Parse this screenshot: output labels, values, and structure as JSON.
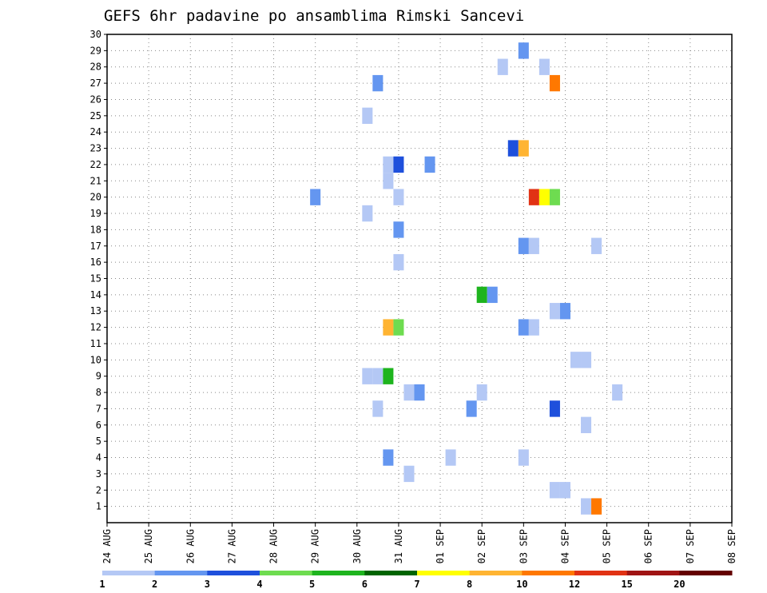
{
  "chart_data": {
    "type": "heatmap",
    "title": "GEFS 6hr padavine po ansamblima Rimski Sancevi",
    "x_ticks": [
      "24 AUG",
      "25 AUG",
      "26 AUG",
      "27 AUG",
      "28 AUG",
      "29 AUG",
      "30 AUG",
      "31 AUG",
      "01 SEP",
      "02 SEP",
      "03 SEP",
      "04 SEP",
      "05 SEP",
      "06 SEP",
      "07 SEP",
      "08 SEP"
    ],
    "y_ticks": [
      1,
      2,
      3,
      4,
      5,
      6,
      7,
      8,
      9,
      10,
      11,
      12,
      13,
      14,
      15,
      16,
      17,
      18,
      19,
      20,
      21,
      22,
      23,
      24,
      25,
      26,
      27,
      28,
      29,
      30
    ],
    "ylim": [
      0,
      30
    ],
    "grid": true,
    "colorbar": {
      "labels": [
        "1",
        "2",
        "3",
        "4",
        "5",
        "6",
        "7",
        "8",
        "10",
        "12",
        "15",
        "20"
      ],
      "colors": [
        "#b4c8f5",
        "#6496f0",
        "#1e50dc",
        "#6edc50",
        "#1eb41e",
        "#006400",
        "#ffff00",
        "#ffb432",
        "#ff7800",
        "#e13214",
        "#a01414",
        "#640000"
      ]
    },
    "cells": [
      {
        "date": "03 SEP 00Z",
        "member": 29,
        "value": 2
      },
      {
        "date": "02 SEP 12Z",
        "member": 28,
        "value": 1
      },
      {
        "date": "03 SEP 12Z",
        "member": 28,
        "value": 1
      },
      {
        "date": "30 AUG 12Z",
        "member": 27,
        "value": 2
      },
      {
        "date": "03 SEP 18Z",
        "member": 27,
        "value": 10
      },
      {
        "date": "30 AUG 06Z",
        "member": 25,
        "value": 1
      },
      {
        "date": "02 SEP 18Z",
        "member": 23,
        "value": 3
      },
      {
        "date": "03 SEP 00Z",
        "member": 23,
        "value": 8
      },
      {
        "date": "30 AUG 18Z",
        "member": 22,
        "value": 1
      },
      {
        "date": "31 AUG 00Z",
        "member": 22,
        "value": 3
      },
      {
        "date": "31 AUG 18Z",
        "member": 22,
        "value": 2
      },
      {
        "date": "30 AUG 18Z",
        "member": 21,
        "value": 1
      },
      {
        "date": "29 AUG 00Z",
        "member": 20,
        "value": 2
      },
      {
        "date": "31 AUG 00Z",
        "member": 20,
        "value": 1
      },
      {
        "date": "03 SEP 06Z",
        "member": 20,
        "value": 12
      },
      {
        "date": "03 SEP 12Z",
        "member": 20,
        "value": 7
      },
      {
        "date": "03 SEP 18Z",
        "member": 20,
        "value": 4
      },
      {
        "date": "30 AUG 06Z",
        "member": 19,
        "value": 1
      },
      {
        "date": "31 AUG 00Z",
        "member": 18,
        "value": 2
      },
      {
        "date": "03 SEP 00Z",
        "member": 17,
        "value": 2
      },
      {
        "date": "03 SEP 06Z",
        "member": 17,
        "value": 1
      },
      {
        "date": "04 SEP 18Z",
        "member": 17,
        "value": 1
      },
      {
        "date": "31 AUG 00Z",
        "member": 16,
        "value": 1
      },
      {
        "date": "02 SEP 00Z",
        "member": 14,
        "value": 5
      },
      {
        "date": "02 SEP 06Z",
        "member": 14,
        "value": 2
      },
      {
        "date": "03 SEP 18Z",
        "member": 13,
        "value": 1
      },
      {
        "date": "04 SEP 00Z",
        "member": 13,
        "value": 2
      },
      {
        "date": "30 AUG 18Z",
        "member": 12,
        "value": 8
      },
      {
        "date": "31 AUG 00Z",
        "member": 12,
        "value": 4
      },
      {
        "date": "03 SEP 00Z",
        "member": 12,
        "value": 2
      },
      {
        "date": "03 SEP 06Z",
        "member": 12,
        "value": 1
      },
      {
        "date": "04 SEP 06Z",
        "member": 10,
        "value": 1
      },
      {
        "date": "04 SEP 12Z",
        "member": 10,
        "value": 1
      },
      {
        "date": "30 AUG 06Z",
        "member": 9,
        "value": 1
      },
      {
        "date": "30 AUG 12Z",
        "member": 9,
        "value": 1
      },
      {
        "date": "30 AUG 18Z",
        "member": 9,
        "value": 5
      },
      {
        "date": "31 AUG 06Z",
        "member": 8,
        "value": 1
      },
      {
        "date": "31 AUG 12Z",
        "member": 8,
        "value": 2
      },
      {
        "date": "02 SEP 00Z",
        "member": 8,
        "value": 1
      },
      {
        "date": "05 SEP 06Z",
        "member": 8,
        "value": 1
      },
      {
        "date": "30 AUG 12Z",
        "member": 7,
        "value": 1
      },
      {
        "date": "01 SEP 18Z",
        "member": 7,
        "value": 2
      },
      {
        "date": "03 SEP 18Z",
        "member": 7,
        "value": 3
      },
      {
        "date": "04 SEP 12Z",
        "member": 6,
        "value": 1
      },
      {
        "date": "31 AUG 06Z",
        "member": 3,
        "value": 1
      },
      {
        "date": "30 AUG 18Z",
        "member": 4,
        "value": 2
      },
      {
        "date": "01 SEP 06Z",
        "member": 4,
        "value": 1
      },
      {
        "date": "03 SEP 00Z",
        "member": 4,
        "value": 1
      },
      {
        "date": "03 SEP 18Z",
        "member": 2,
        "value": 1
      },
      {
        "date": "04 SEP 00Z",
        "member": 2,
        "value": 1
      },
      {
        "date": "04 SEP 12Z",
        "member": 1,
        "value": 1
      },
      {
        "date": "04 SEP 18Z",
        "member": 1,
        "value": 10
      }
    ]
  }
}
